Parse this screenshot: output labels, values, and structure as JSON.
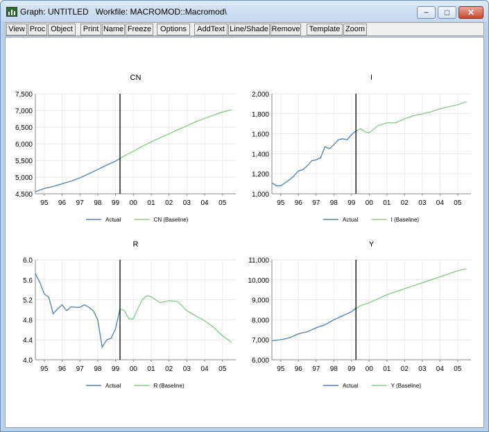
{
  "window": {
    "title": "Graph: UNTITLED   Workfile: MACROMOD::Macromod\\",
    "app_icon": "eviews-graph-icon",
    "minimize_glyph": "−",
    "maximize_glyph": "□",
    "close_glyph": "✕"
  },
  "toolbar": {
    "buttons": [
      "View",
      "Proc",
      "Object",
      "Print",
      "Name",
      "Freeze",
      "Options",
      "AddText",
      "Line/Shade",
      "Remove",
      "Template",
      "Zoom"
    ]
  },
  "colors": {
    "actual": "#5b7fb4",
    "baseline": "#8ccb8c",
    "marker": "#000000"
  },
  "chart_data": [
    {
      "type": "line",
      "title": "CN",
      "x_tick_labels": [
        "95",
        "96",
        "97",
        "98",
        "99",
        "00",
        "01",
        "02",
        "03",
        "04",
        "05"
      ],
      "y_tick_labels": [
        "4,500",
        "5,000",
        "5,500",
        "6,000",
        "6,500",
        "7,000",
        "7,500"
      ],
      "ylim": [
        4500,
        7500
      ],
      "xlim": [
        1994.5,
        2005.75
      ],
      "vline_x": 1999.25,
      "grid": true,
      "legend": "bottom",
      "series": [
        {
          "name": "Actual",
          "x": [
            1994.5,
            1995,
            1995.5,
            1996,
            1996.5,
            1997,
            1997.5,
            1998,
            1998.5,
            1999,
            1999.25
          ],
          "values": [
            4560,
            4660,
            4720,
            4800,
            4880,
            4980,
            5100,
            5230,
            5360,
            5480,
            5560
          ]
        },
        {
          "name": "CN (Baseline)",
          "x": [
            1994.5,
            1995,
            1995.5,
            1996,
            1996.5,
            1997,
            1997.5,
            1998,
            1998.5,
            1999,
            1999.5,
            2000,
            2000.5,
            2001,
            2001.5,
            2002,
            2002.5,
            2003,
            2003.5,
            2004,
            2004.5,
            2005,
            2005.5
          ],
          "values": [
            4560,
            4660,
            4720,
            4800,
            4880,
            4980,
            5100,
            5230,
            5360,
            5480,
            5640,
            5780,
            5920,
            6060,
            6180,
            6300,
            6420,
            6540,
            6660,
            6760,
            6860,
            6950,
            7020
          ]
        }
      ]
    },
    {
      "type": "line",
      "title": "I",
      "x_tick_labels": [
        "95",
        "96",
        "97",
        "98",
        "99",
        "00",
        "01",
        "02",
        "03",
        "04",
        "05"
      ],
      "y_tick_labels": [
        "1,000",
        "1,200",
        "1,400",
        "1,600",
        "1,800",
        "2,000"
      ],
      "ylim": [
        1000,
        2000
      ],
      "xlim": [
        1994.5,
        2005.75
      ],
      "vline_x": 1999.25,
      "grid": true,
      "legend": "bottom",
      "series": [
        {
          "name": "Actual",
          "x": [
            1994.5,
            1994.75,
            1995,
            1995.25,
            1995.5,
            1995.75,
            1996,
            1996.25,
            1996.5,
            1996.75,
            1997,
            1997.25,
            1997.5,
            1997.75,
            1998,
            1998.25,
            1998.5,
            1998.75,
            1999,
            1999.25
          ],
          "values": [
            1110,
            1080,
            1080,
            1110,
            1140,
            1180,
            1230,
            1240,
            1280,
            1330,
            1340,
            1360,
            1470,
            1450,
            1490,
            1540,
            1550,
            1540,
            1590,
            1630
          ]
        },
        {
          "name": "I (Baseline)",
          "x": [
            1994.5,
            1994.75,
            1995,
            1995.25,
            1995.5,
            1995.75,
            1996,
            1996.25,
            1996.5,
            1996.75,
            1997,
            1997.25,
            1997.5,
            1997.75,
            1998,
            1998.25,
            1998.5,
            1998.75,
            1999,
            1999.25,
            1999.5,
            1999.75,
            2000,
            2000.5,
            2001,
            2001.5,
            2002,
            2002.5,
            2003,
            2003.5,
            2004,
            2004.5,
            2005,
            2005.5
          ],
          "values": [
            1110,
            1080,
            1080,
            1110,
            1140,
            1180,
            1230,
            1240,
            1280,
            1330,
            1340,
            1360,
            1470,
            1450,
            1490,
            1540,
            1550,
            1540,
            1590,
            1630,
            1650,
            1620,
            1610,
            1680,
            1710,
            1710,
            1750,
            1780,
            1800,
            1820,
            1850,
            1870,
            1890,
            1920
          ]
        }
      ]
    },
    {
      "type": "line",
      "title": "R",
      "x_tick_labels": [
        "95",
        "96",
        "97",
        "98",
        "99",
        "00",
        "01",
        "02",
        "03",
        "04",
        "05"
      ],
      "y_tick_labels": [
        "4.0",
        "4.4",
        "4.8",
        "5.2",
        "5.6",
        "6.0"
      ],
      "ylim": [
        4.0,
        6.0
      ],
      "xlim": [
        1994.5,
        2005.75
      ],
      "vline_x": 1999.25,
      "grid": true,
      "legend": "bottom",
      "series": [
        {
          "name": "Actual",
          "x": [
            1994.5,
            1994.75,
            1995,
            1995.25,
            1995.5,
            1995.75,
            1996,
            1996.25,
            1996.5,
            1996.75,
            1997,
            1997.25,
            1997.5,
            1997.75,
            1998,
            1998.25,
            1998.5,
            1998.75,
            1999,
            1999.25
          ],
          "values": [
            5.72,
            5.55,
            5.32,
            5.25,
            4.92,
            5.02,
            5.1,
            4.98,
            5.06,
            5.05,
            5.05,
            5.1,
            5.05,
            4.98,
            4.8,
            4.25,
            4.4,
            4.43,
            4.62,
            5.02
          ]
        },
        {
          "name": "R (Baseline)",
          "x": [
            1994.5,
            1994.75,
            1995,
            1995.25,
            1995.5,
            1995.75,
            1996,
            1996.25,
            1996.5,
            1996.75,
            1997,
            1997.25,
            1997.5,
            1997.75,
            1998,
            1998.25,
            1998.5,
            1998.75,
            1999,
            1999.25,
            1999.5,
            1999.75,
            2000,
            2000.25,
            2000.5,
            2000.75,
            2001,
            2001.5,
            2002,
            2002.5,
            2003,
            2003.5,
            2004,
            2004.5,
            2005,
            2005.5
          ],
          "values": [
            5.72,
            5.55,
            5.32,
            5.25,
            4.92,
            5.02,
            5.1,
            4.98,
            5.06,
            5.05,
            5.05,
            5.1,
            5.05,
            4.98,
            4.8,
            4.25,
            4.4,
            4.43,
            4.62,
            5.02,
            4.98,
            4.82,
            4.82,
            5.02,
            5.2,
            5.28,
            5.26,
            5.14,
            5.18,
            5.16,
            4.98,
            4.88,
            4.78,
            4.65,
            4.48,
            4.35
          ]
        }
      ]
    },
    {
      "type": "line",
      "title": "Y",
      "x_tick_labels": [
        "95",
        "96",
        "97",
        "98",
        "99",
        "00",
        "01",
        "02",
        "03",
        "04",
        "05"
      ],
      "y_tick_labels": [
        "6,000",
        "7,000",
        "8,000",
        "9,000",
        "10,000",
        "11,000"
      ],
      "ylim": [
        6000,
        11000
      ],
      "xlim": [
        1994.5,
        2005.75
      ],
      "vline_x": 1999.25,
      "grid": true,
      "legend": "bottom",
      "series": [
        {
          "name": "Actual",
          "x": [
            1994.5,
            1995,
            1995.5,
            1996,
            1996.5,
            1997,
            1997.5,
            1998,
            1998.5,
            1999,
            1999.25
          ],
          "values": [
            6950,
            7000,
            7100,
            7300,
            7400,
            7600,
            7750,
            8000,
            8200,
            8400,
            8600
          ]
        },
        {
          "name": "Y (Baseline)",
          "x": [
            1994.5,
            1995,
            1995.5,
            1996,
            1996.5,
            1997,
            1997.5,
            1998,
            1998.5,
            1999,
            1999.5,
            2000,
            2000.5,
            2001,
            2001.5,
            2002,
            2002.5,
            2003,
            2003.5,
            2004,
            2004.5,
            2005,
            2005.5
          ],
          "values": [
            6950,
            7000,
            7100,
            7300,
            7400,
            7600,
            7750,
            8000,
            8200,
            8400,
            8700,
            8850,
            9050,
            9250,
            9400,
            9550,
            9700,
            9850,
            10000,
            10150,
            10300,
            10450,
            10550
          ]
        }
      ]
    }
  ]
}
